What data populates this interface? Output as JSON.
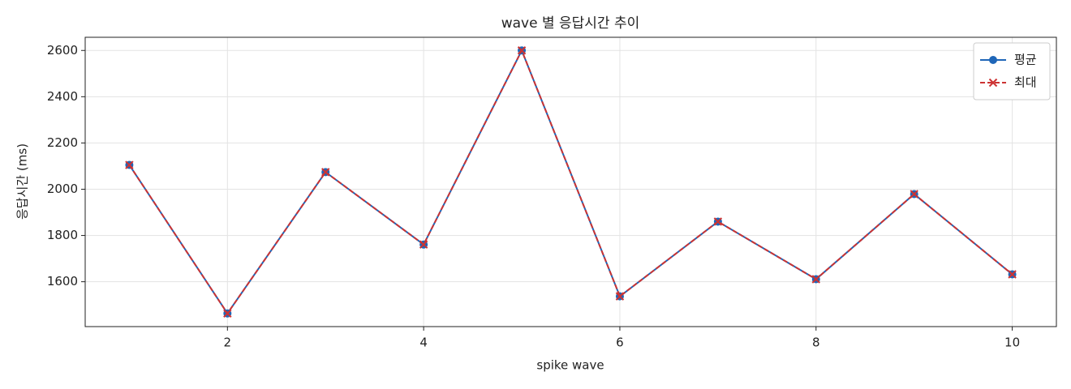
{
  "chart_data": {
    "type": "line",
    "title": "wave 별 응답시간 추이",
    "x_label": "spike wave",
    "y_label": "응답시간 (ms)",
    "x": [
      1,
      2,
      3,
      4,
      5,
      6,
      7,
      8,
      9,
      10
    ],
    "series": [
      {
        "name": "평균",
        "color": "#1f66b8",
        "marker": "o",
        "linestyle": "solid",
        "values": [
          2105,
          1463,
          2074,
          1761,
          2600,
          1537,
          1860,
          1611,
          1979,
          1632
        ]
      },
      {
        "name": "최대",
        "color": "#cc3333",
        "marker": "x",
        "linestyle": "dashed",
        "values": [
          2105,
          1463,
          2074,
          1761,
          2600,
          1537,
          1860,
          1611,
          1979,
          1632
        ]
      }
    ],
    "xlim": [
      0.55,
      10.45
    ],
    "xticks": [
      2,
      4,
      6,
      8,
      10
    ],
    "ylim": [
      1406,
      2657
    ],
    "yticks": [
      1600,
      1800,
      2000,
      2200,
      2400,
      2600
    ],
    "grid": true,
    "legend": "upper-right"
  }
}
